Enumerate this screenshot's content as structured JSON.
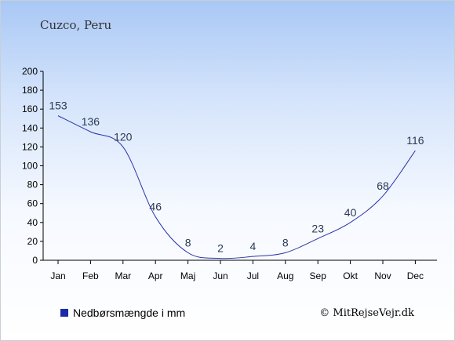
{
  "chart_data": {
    "type": "line",
    "title": "Cuzco, Peru",
    "categories": [
      "Jan",
      "Feb",
      "Mar",
      "Apr",
      "Maj",
      "Jun",
      "Jul",
      "Aug",
      "Sep",
      "Okt",
      "Nov",
      "Dec"
    ],
    "series": [
      {
        "name": "Nedbørsmængde i mm",
        "values": [
          153,
          136,
          120,
          46,
          8,
          2,
          4,
          8,
          23,
          40,
          68,
          116
        ]
      }
    ],
    "ylim": [
      0,
      200
    ],
    "yticks": [
      0,
      20,
      40,
      60,
      80,
      100,
      120,
      140,
      160,
      180,
      200
    ],
    "grid": false,
    "legend": "bottom-left",
    "line_color": "#2a35a8",
    "legend_color": "#1a2aa8"
  },
  "credit": "© MitRejseVejr.dk"
}
